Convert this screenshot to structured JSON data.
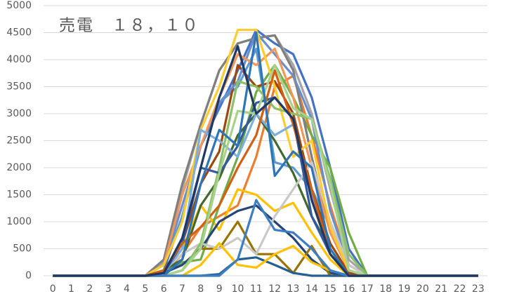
{
  "chart_data": {
    "type": "line",
    "title": "売電　１８，１０",
    "categories": [
      "0",
      "1",
      "2",
      "3",
      "4",
      "5",
      "6",
      "7",
      "8",
      "9",
      "10",
      "11",
      "12",
      "13",
      "14",
      "15",
      "16",
      "17",
      "18",
      "19",
      "20",
      "21",
      "22",
      "23"
    ],
    "ylim": [
      0,
      5000
    ],
    "yticks": [
      0,
      500,
      1000,
      1500,
      2000,
      2500,
      3000,
      3500,
      4000,
      4500,
      5000
    ],
    "grid": true,
    "series": [
      {
        "color": "#4472c4",
        "values": [
          0,
          0,
          0,
          0,
          0,
          0,
          100,
          1100,
          2400,
          3100,
          3800,
          4550,
          4300,
          4100,
          3300,
          2000,
          500,
          0,
          0,
          0,
          0,
          0,
          0,
          0
        ]
      },
      {
        "color": "#ed7d31",
        "values": [
          0,
          0,
          0,
          0,
          0,
          0,
          50,
          400,
          900,
          1100,
          1300,
          2200,
          3500,
          3700,
          2600,
          1300,
          200,
          0,
          0,
          0,
          0,
          0,
          0,
          0
        ]
      },
      {
        "color": "#a5a5a5",
        "values": [
          0,
          0,
          0,
          0,
          0,
          0,
          250,
          1600,
          2800,
          3800,
          4300,
          4400,
          4450,
          3900,
          3000,
          1600,
          300,
          0,
          0,
          0,
          0,
          0,
          0,
          0
        ]
      },
      {
        "color": "#ffc000",
        "values": [
          0,
          0,
          0,
          0,
          0,
          0,
          100,
          500,
          1300,
          850,
          1600,
          1500,
          1200,
          1350,
          800,
          300,
          0,
          0,
          0,
          0,
          0,
          0,
          0,
          0
        ]
      },
      {
        "color": "#5b9bd5",
        "values": [
          0,
          0,
          0,
          0,
          0,
          0,
          200,
          1100,
          2400,
          3200,
          3500,
          4200,
          2100,
          2000,
          1600,
          900,
          100,
          0,
          0,
          0,
          0,
          0,
          0,
          0
        ]
      },
      {
        "color": "#70ad47",
        "values": [
          0,
          0,
          0,
          0,
          0,
          0,
          50,
          250,
          300,
          1300,
          2200,
          3400,
          3900,
          3300,
          2600,
          2000,
          800,
          0,
          0,
          0,
          0,
          0,
          0,
          0
        ]
      },
      {
        "color": "#264478",
        "values": [
          0,
          0,
          0,
          0,
          0,
          0,
          50,
          200,
          500,
          1000,
          1200,
          1300,
          1000,
          700,
          300,
          50,
          0,
          0,
          0,
          0,
          0,
          0,
          0,
          0
        ]
      },
      {
        "color": "#9e480e",
        "values": [
          0,
          0,
          0,
          0,
          0,
          0,
          100,
          600,
          1700,
          2300,
          3900,
          3500,
          3600,
          3000,
          1600,
          600,
          50,
          0,
          0,
          0,
          0,
          0,
          0,
          0
        ]
      },
      {
        "color": "#7f7f7f",
        "values": [
          0,
          0,
          0,
          0,
          0,
          0,
          300,
          1700,
          2800,
          3800,
          4300,
          4400,
          4450,
          3800,
          2200,
          800,
          100,
          0,
          0,
          0,
          0,
          0,
          0,
          0
        ]
      },
      {
        "color": "#997300",
        "values": [
          0,
          0,
          0,
          0,
          0,
          0,
          0,
          100,
          500,
          500,
          1000,
          400,
          400,
          50,
          550,
          0,
          0,
          0,
          0,
          0,
          0,
          0,
          0,
          0
        ]
      },
      {
        "color": "#255e91",
        "values": [
          0,
          0,
          0,
          0,
          0,
          0,
          0,
          0,
          0,
          30,
          300,
          340,
          200,
          50,
          0,
          0,
          0,
          0,
          0,
          0,
          0,
          0,
          0,
          0
        ]
      },
      {
        "color": "#43682b",
        "values": [
          0,
          0,
          0,
          0,
          0,
          0,
          100,
          300,
          1300,
          1800,
          2600,
          3000,
          2500,
          1900,
          1100,
          500,
          0,
          0,
          0,
          0,
          0,
          0,
          0,
          0
        ]
      },
      {
        "color": "#698ed0",
        "values": [
          0,
          0,
          0,
          0,
          0,
          0,
          200,
          1300,
          2400,
          3200,
          3600,
          4500,
          4100,
          3700,
          2900,
          1200,
          200,
          0,
          0,
          0,
          0,
          0,
          0,
          0
        ]
      },
      {
        "color": "#f1975a",
        "values": [
          0,
          0,
          0,
          0,
          0,
          0,
          200,
          1500,
          2400,
          3300,
          4100,
          3900,
          4200,
          3300,
          2000,
          800,
          100,
          0,
          0,
          0,
          0,
          0,
          0,
          0
        ]
      },
      {
        "color": "#c9c9c9",
        "values": [
          0,
          0,
          0,
          0,
          0,
          0,
          100,
          400,
          600,
          500,
          700,
          400,
          1100,
          1600,
          2100,
          1000,
          200,
          0,
          0,
          0,
          0,
          0,
          0,
          0
        ]
      },
      {
        "color": "#ffcd33",
        "values": [
          0,
          0,
          0,
          0,
          0,
          0,
          200,
          1000,
          2700,
          3500,
          4550,
          4550,
          3500,
          2200,
          2500,
          900,
          100,
          0,
          0,
          0,
          0,
          0,
          0,
          0
        ]
      },
      {
        "color": "#7cafdd",
        "values": [
          0,
          0,
          0,
          0,
          0,
          0,
          50,
          500,
          2700,
          2500,
          2200,
          3000,
          2600,
          2800,
          1500,
          400,
          0,
          0,
          0,
          0,
          0,
          0,
          0,
          0
        ]
      },
      {
        "color": "#8cc168",
        "values": [
          0,
          0,
          0,
          0,
          0,
          0,
          0,
          100,
          600,
          2000,
          3600,
          3500,
          3100,
          3000,
          2900,
          1800,
          400,
          0,
          0,
          0,
          0,
          0,
          0,
          0
        ]
      },
      {
        "color": "#335aa1",
        "values": [
          0,
          0,
          0,
          0,
          0,
          0,
          50,
          600,
          2000,
          1900,
          2400,
          3200,
          3300,
          2900,
          1100,
          400,
          0,
          0,
          0,
          0,
          0,
          0,
          0,
          0
        ]
      },
      {
        "color": "#d26012",
        "values": [
          0,
          0,
          0,
          0,
          0,
          0,
          100,
          600,
          900,
          1300,
          2000,
          2600,
          3800,
          2800,
          1600,
          400,
          0,
          0,
          0,
          0,
          0,
          0,
          0,
          0
        ]
      },
      {
        "color": "#a9d18e",
        "values": [
          0,
          0,
          0,
          0,
          0,
          0,
          0,
          100,
          500,
          1900,
          3050,
          3000,
          3900,
          3100,
          2900,
          1700,
          100,
          0,
          0,
          0,
          0,
          0,
          0,
          0
        ]
      },
      {
        "color": "#2e75b6",
        "values": [
          0,
          0,
          0,
          0,
          0,
          0,
          0,
          300,
          1700,
          2700,
          2400,
          4500,
          1850,
          2300,
          2000,
          500,
          0,
          0,
          0,
          0,
          0,
          0,
          0,
          0
        ]
      },
      {
        "color": "#ffc000",
        "values": [
          0,
          0,
          0,
          0,
          0,
          0,
          0,
          0,
          200,
          600,
          200,
          150,
          400,
          550,
          250,
          100,
          0,
          0,
          0,
          0,
          0,
          0,
          0,
          0
        ]
      },
      {
        "color": "#3c7dc4",
        "values": [
          0,
          0,
          0,
          0,
          0,
          0,
          0,
          0,
          0,
          0,
          300,
          1400,
          850,
          800,
          500,
          100,
          0,
          0,
          0,
          0,
          0,
          0,
          0,
          0
        ]
      },
      {
        "color": "#1f3864",
        "values": [
          0,
          0,
          0,
          0,
          0,
          0,
          50,
          700,
          2000,
          3300,
          4250,
          3000,
          3300,
          2900,
          1400,
          400,
          0,
          0,
          0,
          0,
          0,
          0,
          0,
          0
        ]
      }
    ]
  }
}
